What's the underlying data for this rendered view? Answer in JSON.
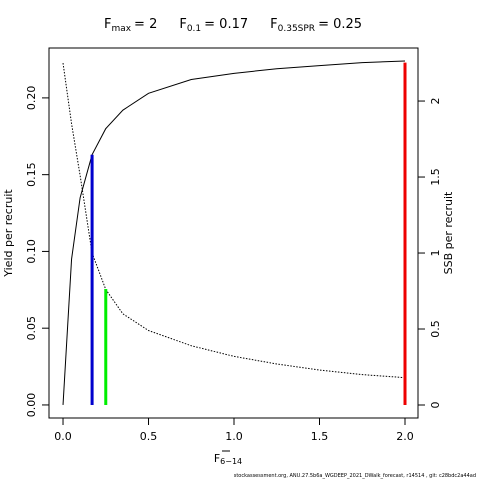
{
  "chart_data": {
    "type": "line",
    "title_items": [
      {
        "symbol": "F",
        "subscript": "max",
        "label": "= 2"
      },
      {
        "symbol": "F",
        "subscript": "0.1",
        "label": "= 0.17"
      },
      {
        "symbol": "F",
        "subscript": "0.35SPR",
        "label": "= 0.25"
      }
    ],
    "xlabel": {
      "symbol": "F",
      "subscript": "6−14"
    },
    "ylabel": "Yield per recruit",
    "y2label": "SSB per recruit",
    "footer": "stockassessment.org,  ANU.27.5b6a_WGDEEP_2021_DWalk_forecast,  r14514 ,  git:  c28bdc2a44ad",
    "x": [
      0,
      0.05,
      0.1,
      0.17,
      0.25,
      0.35,
      0.5,
      0.75,
      1,
      1.25,
      1.5,
      1.75,
      2
    ],
    "series": [
      {
        "name": "Yield per recruit",
        "color": "#000000",
        "dash": "solid",
        "axis": "y",
        "values": [
          0,
          0.095,
          0.135,
          0.163,
          0.18,
          0.192,
          0.203,
          0.212,
          0.216,
          0.219,
          0.221,
          0.223,
          0.224
        ]
      },
      {
        "name": "SSB per recruit",
        "color": "#000000",
        "dash": "dotted",
        "axis": "y2",
        "values": [
          2.25,
          1.85,
          1.51,
          1.0,
          0.76,
          0.6,
          0.49,
          0.39,
          0.32,
          0.27,
          0.23,
          0.2,
          0.18
        ]
      }
    ],
    "reference_lines": [
      {
        "x": 0.17,
        "top": 0.163,
        "axis": "y",
        "color": "#0000cd"
      },
      {
        "x": 0.25,
        "top": 0.763,
        "axis": "y2",
        "color": "#00ee00"
      },
      {
        "x": 2,
        "top": 0.223,
        "axis": "y",
        "color": "#ee0000"
      }
    ],
    "xlim": [
      -0.082,
      2.076
    ],
    "xticks": [
      {
        "value": 0,
        "label": "0.0"
      },
      {
        "value": 0.5,
        "label": "0.5"
      },
      {
        "value": 1,
        "label": "1.0"
      },
      {
        "value": 1.5,
        "label": "1.5"
      },
      {
        "value": 2,
        "label": "2.0"
      }
    ],
    "ylim": [
      -0.0085,
      0.2325
    ],
    "yticks": [
      {
        "value": 0,
        "label": "0.00"
      },
      {
        "value": 0.05,
        "label": "0.05"
      },
      {
        "value": 0.1,
        "label": "0.10"
      },
      {
        "value": 0.15,
        "label": "0.15"
      },
      {
        "value": 0.2,
        "label": "0.20"
      }
    ],
    "y2lim": [
      -0.0855,
      2.349
    ],
    "y2ticks": [
      0,
      0.5,
      1,
      1.5,
      2
    ]
  }
}
